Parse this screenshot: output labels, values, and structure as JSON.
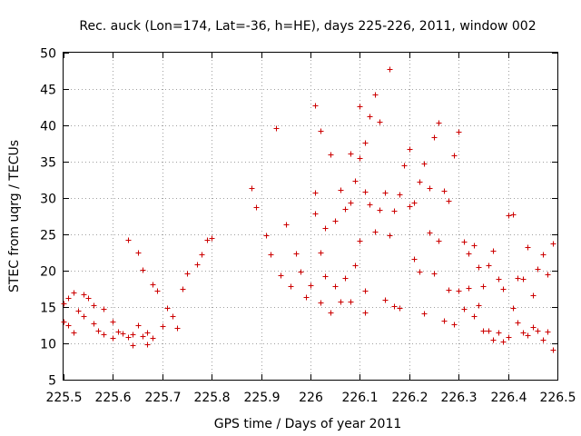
{
  "chart_data": {
    "type": "scatter",
    "title": "Rec. auck (Lon=174, Lat=-36, h=HE), days 225-226, 2011, window 002",
    "xlabel": "GPS time / Days of year 2011",
    "ylabel": "STEC from uqrg / TECUs",
    "xlim": [
      225.5,
      226.5
    ],
    "ylim": [
      5,
      50
    ],
    "xticks": [
      "225.5",
      "225.6",
      "225.7",
      "225.8",
      "225.9",
      "226",
      "226.1",
      "226.2",
      "226.3",
      "226.4",
      "226.5"
    ],
    "yticks": [
      "5",
      "10",
      "15",
      "20",
      "25",
      "30",
      "35",
      "40",
      "45",
      "50"
    ],
    "grid": true,
    "marker": "plus",
    "color": "#cc0000",
    "series": [
      {
        "name": "STEC",
        "x": [
          225.5,
          225.5,
          225.51,
          225.51,
          225.52,
          225.52,
          225.53,
          225.54,
          225.54,
          225.55,
          225.56,
          225.56,
          225.57,
          225.58,
          225.58,
          225.6,
          225.6,
          225.61,
          225.62,
          225.63,
          225.63,
          225.64,
          225.64,
          225.65,
          225.65,
          225.66,
          225.66,
          225.67,
          225.67,
          225.68,
          225.68,
          225.69,
          225.7,
          225.71,
          225.72,
          225.73,
          225.74,
          225.75,
          225.77,
          225.78,
          225.79,
          225.8,
          225.88,
          225.89,
          225.91,
          225.92,
          225.93,
          225.94,
          225.95,
          225.96,
          225.97,
          225.98,
          225.99,
          226.0,
          226.01,
          226.01,
          226.01,
          226.02,
          226.02,
          226.02,
          226.03,
          226.03,
          226.04,
          226.04,
          226.05,
          226.05,
          226.06,
          226.06,
          226.07,
          226.07,
          226.08,
          226.08,
          226.08,
          226.09,
          226.09,
          226.1,
          226.1,
          226.1,
          226.11,
          226.11,
          226.11,
          226.11,
          226.12,
          226.12,
          226.13,
          226.13,
          226.14,
          226.14,
          226.15,
          226.15,
          226.16,
          226.16,
          226.17,
          226.17,
          226.18,
          226.18,
          226.19,
          226.2,
          226.2,
          226.21,
          226.21,
          226.22,
          226.22,
          226.23,
          226.23,
          226.24,
          226.24,
          226.25,
          226.25,
          226.26,
          226.26,
          226.27,
          226.27,
          226.28,
          226.28,
          226.29,
          226.29,
          226.3,
          226.3,
          226.31,
          226.31,
          226.32,
          226.32,
          226.33,
          226.33,
          226.34,
          226.34,
          226.35,
          226.35,
          226.36,
          226.36,
          226.37,
          226.37,
          226.38,
          226.38,
          226.39,
          226.39,
          226.4,
          226.4,
          226.41,
          226.41,
          226.42,
          226.42,
          226.43,
          226.43,
          226.44,
          226.44,
          226.45,
          226.45,
          226.46,
          226.46,
          226.47,
          226.47,
          226.48,
          226.48,
          226.49,
          226.49
        ],
        "y": [
          15.5,
          13.0,
          12.5,
          16.2,
          17.0,
          11.5,
          14.5,
          16.8,
          13.8,
          16.3,
          15.2,
          12.8,
          11.8,
          14.7,
          11.3,
          13.0,
          10.8,
          11.6,
          11.4,
          10.9,
          24.3,
          9.7,
          11.2,
          22.5,
          12.5,
          20.1,
          11.0,
          9.9,
          11.5,
          18.1,
          10.8,
          17.2,
          12.4,
          14.9,
          13.8,
          12.1,
          17.5,
          19.6,
          20.9,
          22.2,
          24.2,
          24.5,
          31.4,
          28.7,
          24.9,
          22.2,
          39.6,
          19.4,
          26.4,
          17.9,
          22.4,
          19.9,
          16.4,
          18.0,
          42.7,
          30.7,
          27.9,
          39.2,
          22.5,
          15.6,
          25.9,
          19.2,
          36.0,
          14.2,
          26.9,
          17.9,
          31.1,
          15.8,
          28.5,
          19.0,
          36.1,
          29.4,
          15.8,
          32.4,
          20.8,
          42.6,
          35.5,
          24.1,
          37.6,
          30.9,
          17.2,
          14.3,
          41.2,
          29.1,
          44.3,
          25.4,
          40.5,
          28.4,
          30.8,
          16.0,
          47.7,
          24.9,
          28.3,
          15.1,
          30.5,
          14.9,
          34.5,
          36.8,
          28.9,
          29.4,
          21.6,
          32.2,
          19.9,
          34.8,
          14.1,
          31.4,
          25.2,
          38.4,
          19.6,
          40.4,
          24.1,
          31.0,
          13.1,
          29.6,
          17.4,
          35.9,
          12.6,
          39.1,
          17.2,
          24.0,
          14.7,
          22.4,
          17.6,
          23.5,
          13.7,
          20.5,
          15.3,
          17.9,
          11.7,
          20.8,
          11.8,
          22.7,
          10.5,
          18.9,
          11.5,
          17.5,
          10.3,
          27.6,
          10.9,
          27.7,
          14.9,
          19.0,
          12.9,
          18.9,
          11.5,
          23.3,
          11.1,
          16.6,
          12.3,
          20.2,
          11.8,
          22.3,
          10.5,
          19.5,
          11.6,
          23.7,
          9.1
        ]
      }
    ]
  }
}
